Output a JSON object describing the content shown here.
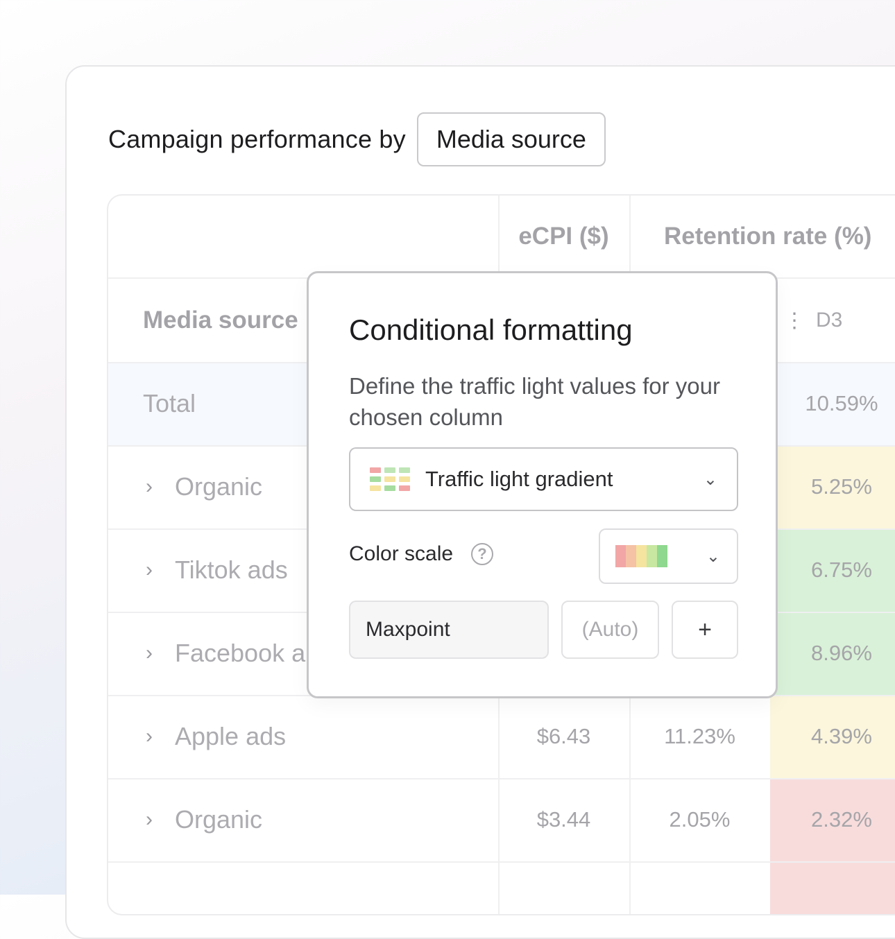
{
  "header": {
    "title": "Campaign performance by",
    "group_by": "Media source"
  },
  "table": {
    "columns": {
      "ecpi": "eCPI ($)",
      "retention": "Retention rate (%)",
      "first_col": "Media source",
      "d3": "D3"
    },
    "total": {
      "label": "Total",
      "d3": "10.59%"
    },
    "rows": [
      {
        "label": "Organic",
        "ecpi": "",
        "retention": "",
        "d3": "5.25%",
        "d3_color": "#fbf6dc"
      },
      {
        "label": "Tiktok ads",
        "ecpi": "",
        "retention": "",
        "d3": "6.75%",
        "d3_color": "#d9f1d8"
      },
      {
        "label": "Facebook a",
        "ecpi": "",
        "retention": "",
        "d3": "8.96%",
        "d3_color": "#d9f1d8"
      },
      {
        "label": "Apple ads",
        "ecpi": "$6.43",
        "retention": "11.23%",
        "d3": "4.39%",
        "d3_color": "#fbf6dc"
      },
      {
        "label": "Organic",
        "ecpi": "$3.44",
        "retention": "2.05%",
        "d3": "2.32%",
        "d3_color": "#f8dcdc"
      }
    ]
  },
  "popover": {
    "title": "Conditional formatting",
    "description": "Define the traffic light values for your chosen column",
    "format_type": "Traffic light gradient",
    "color_scale_label": "Color scale",
    "help_icon": "?",
    "scale_colors": [
      "#f2a6a6",
      "#f5c2a6",
      "#f5e3a0",
      "#c8e7a0",
      "#8fd88f"
    ],
    "max_field": "Maxpoint",
    "max_value_placeholder": "(Auto)",
    "add_label": "+"
  }
}
